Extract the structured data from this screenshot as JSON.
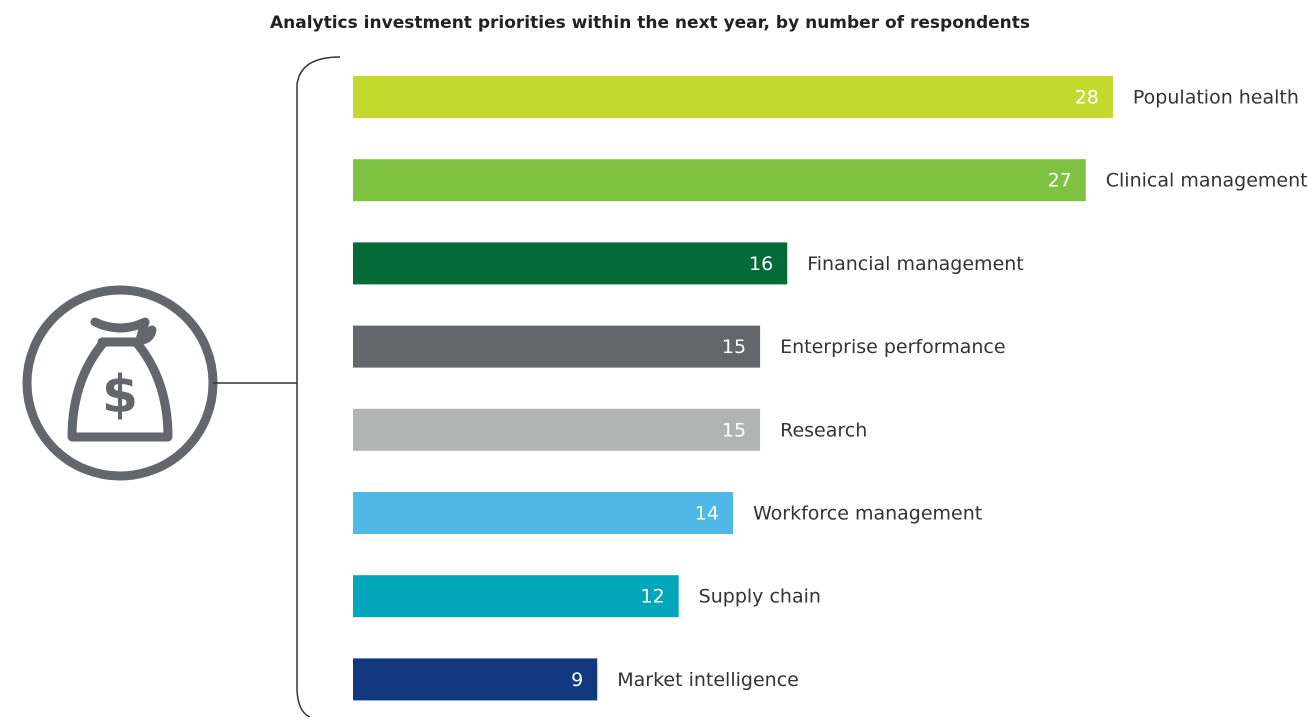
{
  "chart_data": {
    "type": "bar",
    "orientation": "horizontal",
    "title": "Analytics investment priorities within the next year, by number of respondents",
    "categories": [
      "Population health",
      "Clinical management",
      "Financial management",
      "Enterprise performance",
      "Research",
      "Workforce management",
      "Supply chain",
      "Market intelligence"
    ],
    "values": [
      28,
      27,
      16,
      15,
      15,
      14,
      12,
      9
    ],
    "colors": [
      "#c4d82e",
      "#7fc241",
      "#046a38",
      "#63666a",
      "#b1b4b3",
      "#4fb8e6",
      "#00a6b9",
      "#12387f"
    ]
  }
}
